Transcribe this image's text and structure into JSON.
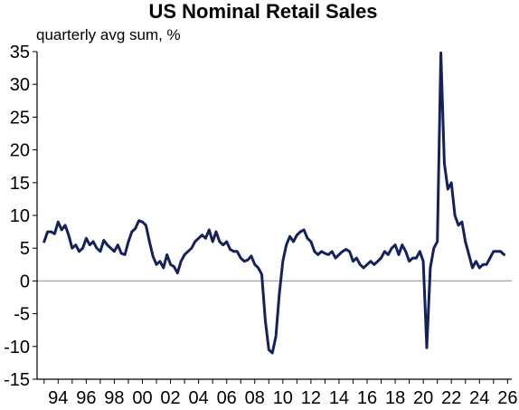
{
  "chart_data": {
    "type": "line",
    "title": "US Nominal Retail Sales",
    "subtitle": "quarterly avg sum, %",
    "xlabel": "",
    "ylabel": "",
    "xlim": [
      1992.5,
      2026.3
    ],
    "ylim": [
      -15,
      35
    ],
    "y_ticks": [
      "35",
      "30",
      "25",
      "20",
      "15",
      "10",
      "5",
      "0",
      "-5",
      "-10",
      "-15"
    ],
    "x_ticks": [
      "94",
      "96",
      "98",
      "00",
      "02",
      "04",
      "06",
      "08",
      "10",
      "12",
      "14",
      "16",
      "18",
      "20",
      "22",
      "24",
      "26"
    ],
    "zero_line": true,
    "grid": false,
    "colors": {
      "line": "#15215b",
      "axis": "#000000",
      "zero_line": "#a6a6a6"
    },
    "series": [
      {
        "x": [
          1993.0,
          1993.25,
          1993.5,
          1993.75,
          1994.0,
          1994.25,
          1994.5,
          1994.75,
          1995.0,
          1995.25,
          1995.5,
          1995.75,
          1996.0,
          1996.25,
          1996.5,
          1996.75,
          1997.0,
          1997.25,
          1997.5,
          1997.75,
          1998.0,
          1998.25,
          1998.5,
          1998.75,
          1999.0,
          1999.25,
          1999.5,
          1999.75,
          2000.0,
          2000.25,
          2000.5,
          2000.75,
          2001.0,
          2001.25,
          2001.5,
          2001.75,
          2002.0,
          2002.25,
          2002.5,
          2002.75,
          2003.0,
          2003.25,
          2003.5,
          2003.75,
          2004.0,
          2004.25,
          2004.5,
          2004.75,
          2005.0,
          2005.25,
          2005.5,
          2005.75,
          2006.0,
          2006.25,
          2006.5,
          2006.75,
          2007.0,
          2007.25,
          2007.5,
          2007.75,
          2008.0,
          2008.25,
          2008.5,
          2008.75,
          2009.0,
          2009.25,
          2009.5,
          2009.75,
          2010.0,
          2010.25,
          2010.5,
          2010.75,
          2011.0,
          2011.25,
          2011.5,
          2011.75,
          2012.0,
          2012.25,
          2012.5,
          2012.75,
          2013.0,
          2013.25,
          2013.5,
          2013.75,
          2014.0,
          2014.25,
          2014.5,
          2014.75,
          2015.0,
          2015.25,
          2015.5,
          2015.75,
          2016.0,
          2016.25,
          2016.5,
          2016.75,
          2017.0,
          2017.25,
          2017.5,
          2017.75,
          2018.0,
          2018.25,
          2018.5,
          2018.75,
          2019.0,
          2019.25,
          2019.5,
          2019.75,
          2020.0,
          2020.25,
          2020.5,
          2020.75,
          2021.0,
          2021.25,
          2021.5,
          2021.75,
          2022.0,
          2022.25,
          2022.5,
          2022.75,
          2023.0,
          2023.25,
          2023.5,
          2023.75,
          2024.0,
          2024.25,
          2024.5,
          2024.75,
          2025.0,
          2025.25,
          2025.5,
          2025.75
        ],
        "y": [
          6.0,
          7.5,
          7.5,
          7.2,
          9.0,
          7.8,
          8.5,
          7.0,
          5.0,
          5.5,
          4.5,
          5.0,
          6.5,
          5.5,
          6.0,
          5.0,
          4.5,
          6.2,
          5.5,
          5.0,
          4.5,
          5.5,
          4.2,
          4.0,
          6.0,
          7.5,
          8.0,
          9.2,
          9.0,
          8.5,
          6.0,
          3.8,
          2.5,
          3.0,
          2.0,
          4.0,
          2.5,
          2.2,
          1.2,
          3.0,
          4.0,
          4.5,
          5.0,
          6.0,
          6.5,
          7.0,
          6.5,
          7.8,
          6.0,
          7.5,
          6.0,
          5.5,
          6.0,
          4.8,
          4.5,
          4.5,
          3.5,
          3.0,
          3.2,
          3.8,
          2.5,
          2.0,
          1.0,
          -6.0,
          -10.5,
          -11.0,
          -8.5,
          -2.0,
          3.0,
          5.5,
          6.8,
          6.0,
          7.0,
          7.5,
          7.8,
          6.5,
          6.0,
          4.5,
          4.0,
          4.5,
          4.2,
          4.0,
          4.5,
          3.5,
          4.0,
          4.5,
          4.8,
          4.5,
          3.0,
          3.5,
          2.5,
          2.0,
          2.5,
          3.0,
          2.5,
          3.0,
          3.5,
          4.5,
          4.0,
          5.0,
          5.5,
          4.0,
          5.5,
          4.5,
          3.0,
          3.5,
          3.5,
          4.5,
          3.0,
          -10.2,
          2.0,
          5.0,
          6.0,
          34.8,
          18.0,
          14.0,
          15.0,
          10.0,
          8.5,
          9.0,
          6.0,
          4.0,
          2.0,
          3.0,
          2.0,
          2.5,
          2.5,
          3.5,
          4.5,
          4.5,
          4.5,
          4.0
        ]
      }
    ]
  }
}
